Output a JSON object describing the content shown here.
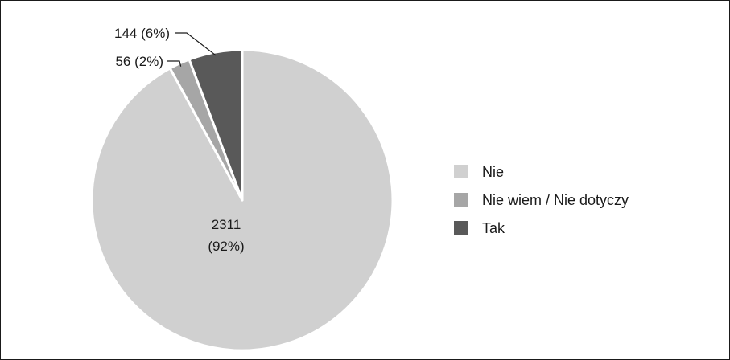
{
  "chart_data": {
    "type": "pie",
    "categories": [
      "Nie",
      "Nie wiem / Nie dotyczy",
      "Tak"
    ],
    "values": [
      2311,
      56,
      144
    ],
    "data_labels": [
      "2311\n(92%)",
      "56 (2%)",
      "144 (6%)"
    ],
    "colors": [
      "#d0d0d0",
      "#a6a6a6",
      "#595959"
    ],
    "slice_border_color": "#ffffff",
    "legend_placement": "right",
    "title": ""
  }
}
